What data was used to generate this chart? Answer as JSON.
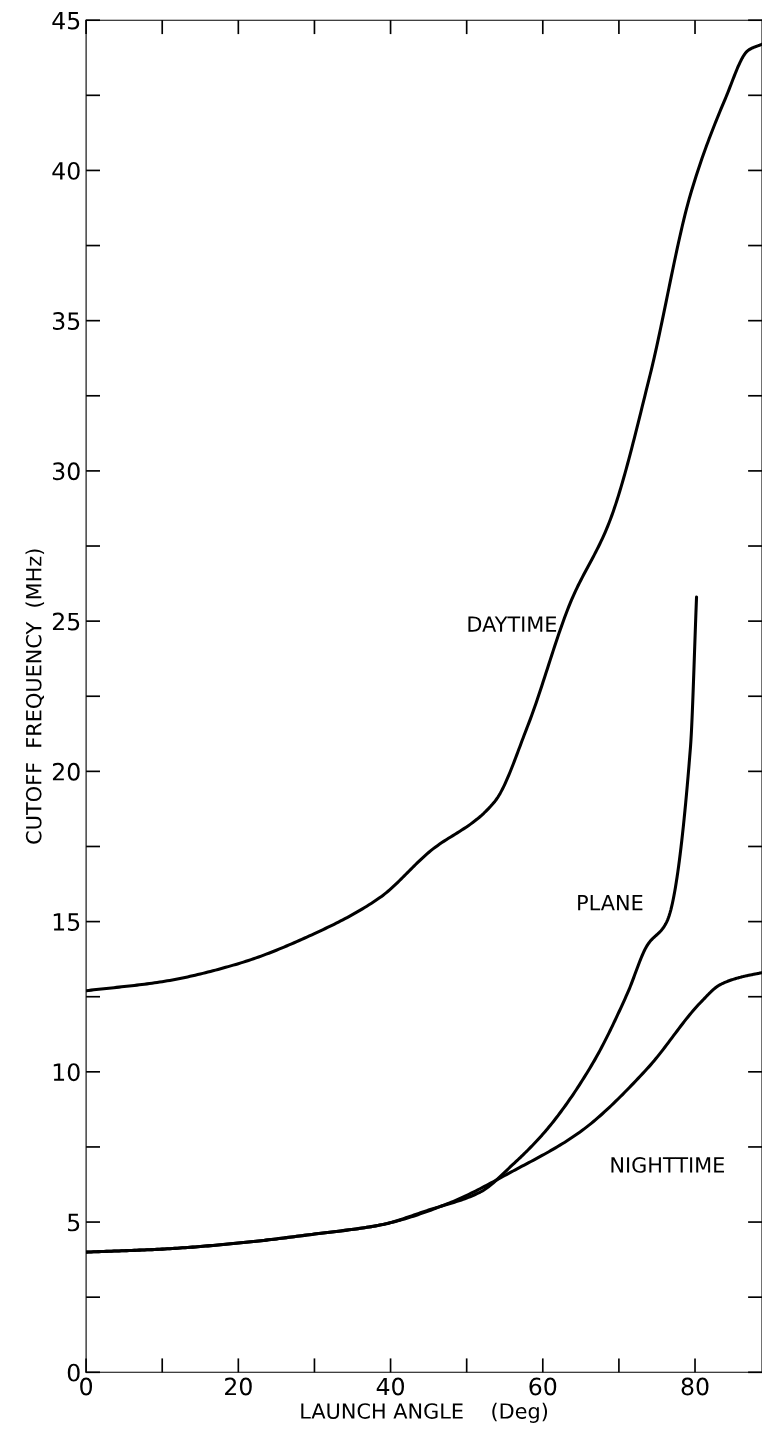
{
  "chart_data": {
    "type": "line",
    "xlabel": "LAUNCH ANGLE    (Deg)",
    "ylabel": "CUTOFF  FREQUENCY  (MHz)",
    "xlim": [
      0,
      88.8
    ],
    "ylim": [
      0,
      45
    ],
    "xticks": [
      0,
      {
        "value": 10,
        "label": null
      },
      20,
      {
        "value": 30,
        "label": null
      },
      40,
      {
        "value": 50,
        "label": null
      },
      60,
      {
        "value": 70,
        "label": null
      },
      80
    ],
    "yticks": [
      0,
      {
        "value": 2.5,
        "label": null
      },
      5,
      {
        "value": 7.5,
        "label": null
      },
      10,
      {
        "value": 12.5,
        "label": null
      },
      15,
      {
        "value": 17.5,
        "label": null
      },
      20,
      {
        "value": 22.5,
        "label": null
      },
      25,
      {
        "value": 27.5,
        "label": null
      },
      30,
      {
        "value": 32.5,
        "label": null
      },
      35,
      {
        "value": 37.5,
        "label": null
      },
      40,
      {
        "value": 42.5,
        "label": null
      },
      45
    ],
    "grid": false,
    "legend": false,
    "marker": "none",
    "line_style": "solid",
    "series": [
      {
        "color": "#000000",
        "x": [
          0,
          10,
          20,
          30,
          38.6,
          45,
          53.7,
          58,
          63.6,
          68.9,
          74.1,
          79.4,
          84.0,
          87.0,
          88.8
        ],
        "values": [
          12.7,
          13.0,
          13.6,
          14.6,
          15.8,
          17.3,
          19.0,
          21.5,
          25.6,
          28.4,
          33.2,
          39.2,
          42.4,
          44.0,
          44.2
        ]
      },
      {
        "color": "#000000",
        "x": [
          0,
          10,
          20,
          30,
          38.6,
          45,
          51.8,
          56,
          60.6,
          66.6,
          71.1,
          73.7,
          76.3,
          79.4,
          80.2
        ],
        "values": [
          4.0,
          4.1,
          4.3,
          4.6,
          4.9,
          5.4,
          6.0,
          6.9,
          8.1,
          10.3,
          12.6,
          14.2,
          15.0,
          20.8,
          25.8
        ]
      },
      {
        "color": "#000000",
        "x": [
          0,
          10,
          20,
          30,
          38.6,
          47.4,
          56.1,
          64.9,
          73.7,
          80.7,
          83.3,
          86,
          88.8
        ],
        "values": [
          4.0,
          4.1,
          4.3,
          4.6,
          4.9,
          5.6,
          6.7,
          8.0,
          10.1,
          12.3,
          12.9,
          13.15,
          13.3
        ]
      }
    ],
    "annotations": [
      "DAYTIME",
      "PLANE",
      "NIGHTTIME"
    ]
  }
}
